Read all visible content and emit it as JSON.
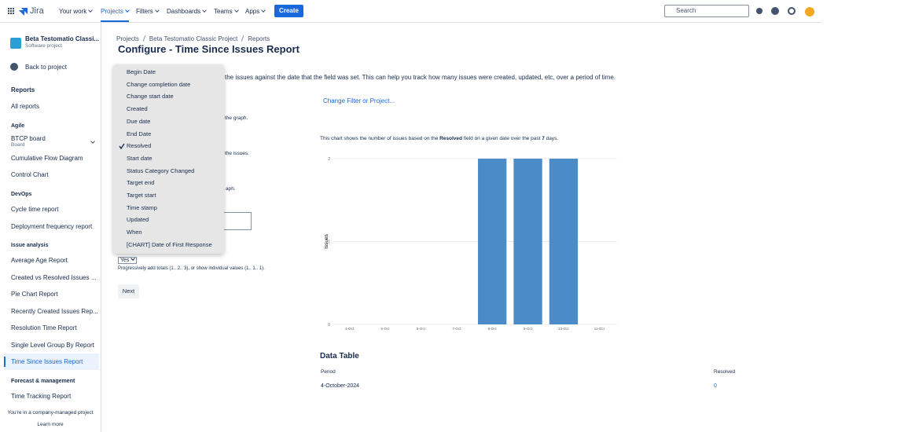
{
  "nav": {
    "product": "Jira",
    "items": [
      "Your work",
      "Projects",
      "Filters",
      "Dashboards",
      "Teams",
      "Apps"
    ],
    "create": "Create",
    "search": "Search"
  },
  "sidebar": {
    "project_name": "Beta Testomatio Classi...",
    "project_type": "Software project",
    "back": "Back to project",
    "reports": "Reports",
    "all_reports": "All reports",
    "agile": "Agile",
    "board_name": "BTCP board",
    "board_type": "Board",
    "agile_items": [
      "Cumulative Flow Diagram",
      "Control Chart"
    ],
    "devops": "DevOps",
    "devops_items": [
      "Cycle time report",
      "Deployment frequency report"
    ],
    "issue_analysis": "Issue analysis",
    "issue_items": [
      "Average Age Report",
      "Created vs Resolved Issues ...",
      "Pie Chart Report",
      "Recently Created Issues Rep...",
      "Resolution Time Report",
      "Single Level Group By Report",
      "Time Since Issues Report"
    ],
    "forecast": "Forecast & management",
    "forecast_items": [
      "Time Tracking Report"
    ],
    "footer": "You're in a company-managed project",
    "learn_more": "Learn more"
  },
  "breadcrumbs": [
    "Projects",
    "Beta Testomatio Classic Project",
    "Reports"
  ],
  "title": "Configure - Time Since Issues Report",
  "description": "the issues against the date that the field was set. This can help you track how many issues were created, updated, etc, over a period of time.",
  "form": {
    "help_texts": [
      "the graph.",
      "the issues.",
      "aph."
    ],
    "cumulative": "Yes",
    "cumulative_help": "Progressively add totals (1.. 2.. 3), or show individual values (1.. 1.. 1).",
    "next": "Next"
  },
  "dropdown": {
    "items": [
      "Begin Date",
      "Change completion date",
      "Change start date",
      "Created",
      "Due date",
      "End Date",
      "Resolved",
      "Start date",
      "Status Category Changed",
      "Target end",
      "Target start",
      "Time stamp",
      "Updated",
      "When",
      "[CHART] Date of First Response"
    ],
    "selected": "Resolved"
  },
  "change_filter": "Change Filter or Project...",
  "chart_caption": [
    "This chart shows the number of issues based on the ",
    "Resolved",
    " field on a given date over the past ",
    "7",
    " days."
  ],
  "chart_data": {
    "type": "bar",
    "y_label": "Issues",
    "categories": [
      "4-Oct",
      "5-Oct",
      "6-Oct",
      "7-Oct",
      "8-Oct",
      "9-Oct",
      "10-Oct",
      "11-Oct"
    ],
    "values": [
      0,
      0,
      0,
      0,
      2,
      2,
      2,
      0
    ],
    "color": "#4a8bc8",
    "ylim": [
      0,
      2
    ],
    "yticks": [
      0,
      1,
      2
    ],
    "grid": true
  },
  "data_table": {
    "title": "Data Table",
    "headers": [
      "Period",
      "Resolved"
    ],
    "rows": [
      [
        "4-October-2024",
        "0"
      ]
    ]
  }
}
